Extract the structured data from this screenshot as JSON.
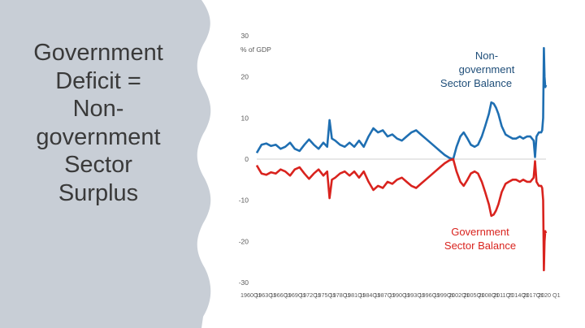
{
  "slide": {
    "title_lines": [
      "Government",
      "Deficit =",
      "Non-",
      "government",
      "Sector",
      "Surplus"
    ]
  },
  "colors": {
    "panel": "#c8ced6",
    "nongov": "#1f6fb2",
    "gov": "#d9231e",
    "text": "#3a3a3a"
  },
  "chart_data": {
    "type": "line",
    "ylabel": "% of GDP",
    "ylim": [
      -30,
      30
    ],
    "yticks": [
      30,
      20,
      10,
      0,
      -10,
      -20,
      -30
    ],
    "xticks": [
      "1960Q1",
      "1963Q1",
      "1966Q1",
      "1969Q1",
      "1972Q1",
      "1975Q1",
      "1978Q1",
      "1981Q1",
      "1984Q1",
      "1987Q1",
      "1990Q1",
      "1993Q1",
      "1996Q1",
      "1999Q1",
      "2002Q1",
      "2005Q1",
      "2008Q1",
      "2011Q1",
      "2014Q1",
      "2017Q1",
      "2020 Q1"
    ],
    "grid": false,
    "annotations": [
      {
        "series": "Non-government Sector Balance",
        "lines": [
          "Non-",
          "government",
          "Sector Balance"
        ]
      },
      {
        "series": "Government Sector Balance",
        "lines": [
          "Government",
          "Sector Balance"
        ]
      }
    ],
    "series": [
      {
        "name": "Non-government Sector Balance",
        "x": [
          1960.0,
          1960.5,
          1961.0,
          1962.0,
          1963.0,
          1964.0,
          1965.0,
          1966.0,
          1967.0,
          1968.0,
          1969.0,
          1970.0,
          1971.0,
          1972.0,
          1973.0,
          1974.0,
          1974.8,
          1975.3,
          1975.8,
          1976.5,
          1977.5,
          1978.5,
          1979.5,
          1980.5,
          1981.5,
          1982.5,
          1983.5,
          1984.5,
          1985.5,
          1986.5,
          1987.5,
          1988.5,
          1989.5,
          1990.5,
          1991.5,
          1992.5,
          1993.5,
          1994.5,
          1995.5,
          1996.5,
          1997.5,
          1998.5,
          1999.5,
          2000.5,
          2001.3,
          2002.0,
          2002.8,
          2003.5,
          2004.3,
          2005.0,
          2005.8,
          2006.5,
          2007.3,
          2008.0,
          2008.8,
          2009.3,
          2009.8,
          2010.3,
          2010.8,
          2011.5,
          2012.3,
          2013.0,
          2013.8,
          2014.5,
          2015.3,
          2016.0,
          2016.8,
          2017.5,
          2018.2,
          2018.5,
          2018.8,
          2019.3,
          2019.8,
          2020.0,
          2020.2,
          2020.35,
          2020.5,
          2020.65,
          2020.8
        ],
        "values": [
          1.5,
          2.5,
          3.5,
          3.8,
          3.2,
          3.5,
          2.5,
          3.0,
          4.0,
          2.5,
          2.0,
          3.5,
          4.8,
          3.5,
          2.5,
          4.0,
          3.0,
          9.5,
          5.0,
          4.5,
          3.5,
          3.0,
          4.0,
          3.0,
          4.5,
          3.0,
          5.5,
          7.5,
          6.5,
          7.0,
          5.5,
          6.0,
          5.0,
          4.5,
          5.5,
          6.5,
          7.0,
          6.0,
          5.0,
          4.0,
          3.0,
          2.0,
          1.0,
          0.3,
          0.0,
          3.0,
          5.5,
          6.5,
          5.0,
          3.5,
          3.0,
          3.5,
          5.5,
          8.0,
          11.0,
          13.8,
          13.5,
          12.5,
          11.0,
          8.0,
          6.0,
          5.5,
          5.0,
          5.0,
          5.5,
          5.0,
          5.5,
          5.5,
          4.5,
          0.5,
          5.5,
          6.5,
          6.5,
          7.0,
          10.0,
          27.0,
          20.0,
          17.5,
          18.0
        ]
      },
      {
        "name": "Government Sector Balance",
        "x": [
          1960.0,
          1960.5,
          1961.0,
          1962.0,
          1963.0,
          1964.0,
          1965.0,
          1966.0,
          1967.0,
          1968.0,
          1969.0,
          1970.0,
          1971.0,
          1972.0,
          1973.0,
          1974.0,
          1974.8,
          1975.3,
          1975.8,
          1976.5,
          1977.5,
          1978.5,
          1979.5,
          1980.5,
          1981.5,
          1982.5,
          1983.5,
          1984.5,
          1985.5,
          1986.5,
          1987.5,
          1988.5,
          1989.5,
          1990.5,
          1991.5,
          1992.5,
          1993.5,
          1994.5,
          1995.5,
          1996.5,
          1997.5,
          1998.5,
          1999.5,
          2000.5,
          2001.3,
          2002.0,
          2002.8,
          2003.5,
          2004.3,
          2005.0,
          2005.8,
          2006.5,
          2007.3,
          2008.0,
          2008.8,
          2009.3,
          2009.8,
          2010.3,
          2010.8,
          2011.5,
          2012.3,
          2013.0,
          2013.8,
          2014.5,
          2015.3,
          2016.0,
          2016.8,
          2017.5,
          2018.2,
          2018.5,
          2018.8,
          2019.3,
          2019.8,
          2020.0,
          2020.2,
          2020.35,
          2020.5,
          2020.65,
          2020.8
        ],
        "values": [
          -1.5,
          -2.5,
          -3.5,
          -3.8,
          -3.2,
          -3.5,
          -2.5,
          -3.0,
          -4.0,
          -2.5,
          -2.0,
          -3.5,
          -4.8,
          -3.5,
          -2.5,
          -4.0,
          -3.0,
          -9.5,
          -5.0,
          -4.5,
          -3.5,
          -3.0,
          -4.0,
          -3.0,
          -4.5,
          -3.0,
          -5.5,
          -7.5,
          -6.5,
          -7.0,
          -5.5,
          -6.0,
          -5.0,
          -4.5,
          -5.5,
          -6.5,
          -7.0,
          -6.0,
          -5.0,
          -4.0,
          -3.0,
          -2.0,
          -1.0,
          -0.3,
          0.0,
          -3.0,
          -5.5,
          -6.5,
          -5.0,
          -3.5,
          -3.0,
          -3.5,
          -5.5,
          -8.0,
          -11.0,
          -13.8,
          -13.5,
          -12.5,
          -11.0,
          -8.0,
          -6.0,
          -5.5,
          -5.0,
          -5.0,
          -5.5,
          -5.0,
          -5.5,
          -5.5,
          -4.5,
          -0.5,
          -5.5,
          -6.5,
          -6.5,
          -7.0,
          -10.0,
          -27.0,
          -20.0,
          -17.5,
          -18.0
        ]
      }
    ]
  }
}
